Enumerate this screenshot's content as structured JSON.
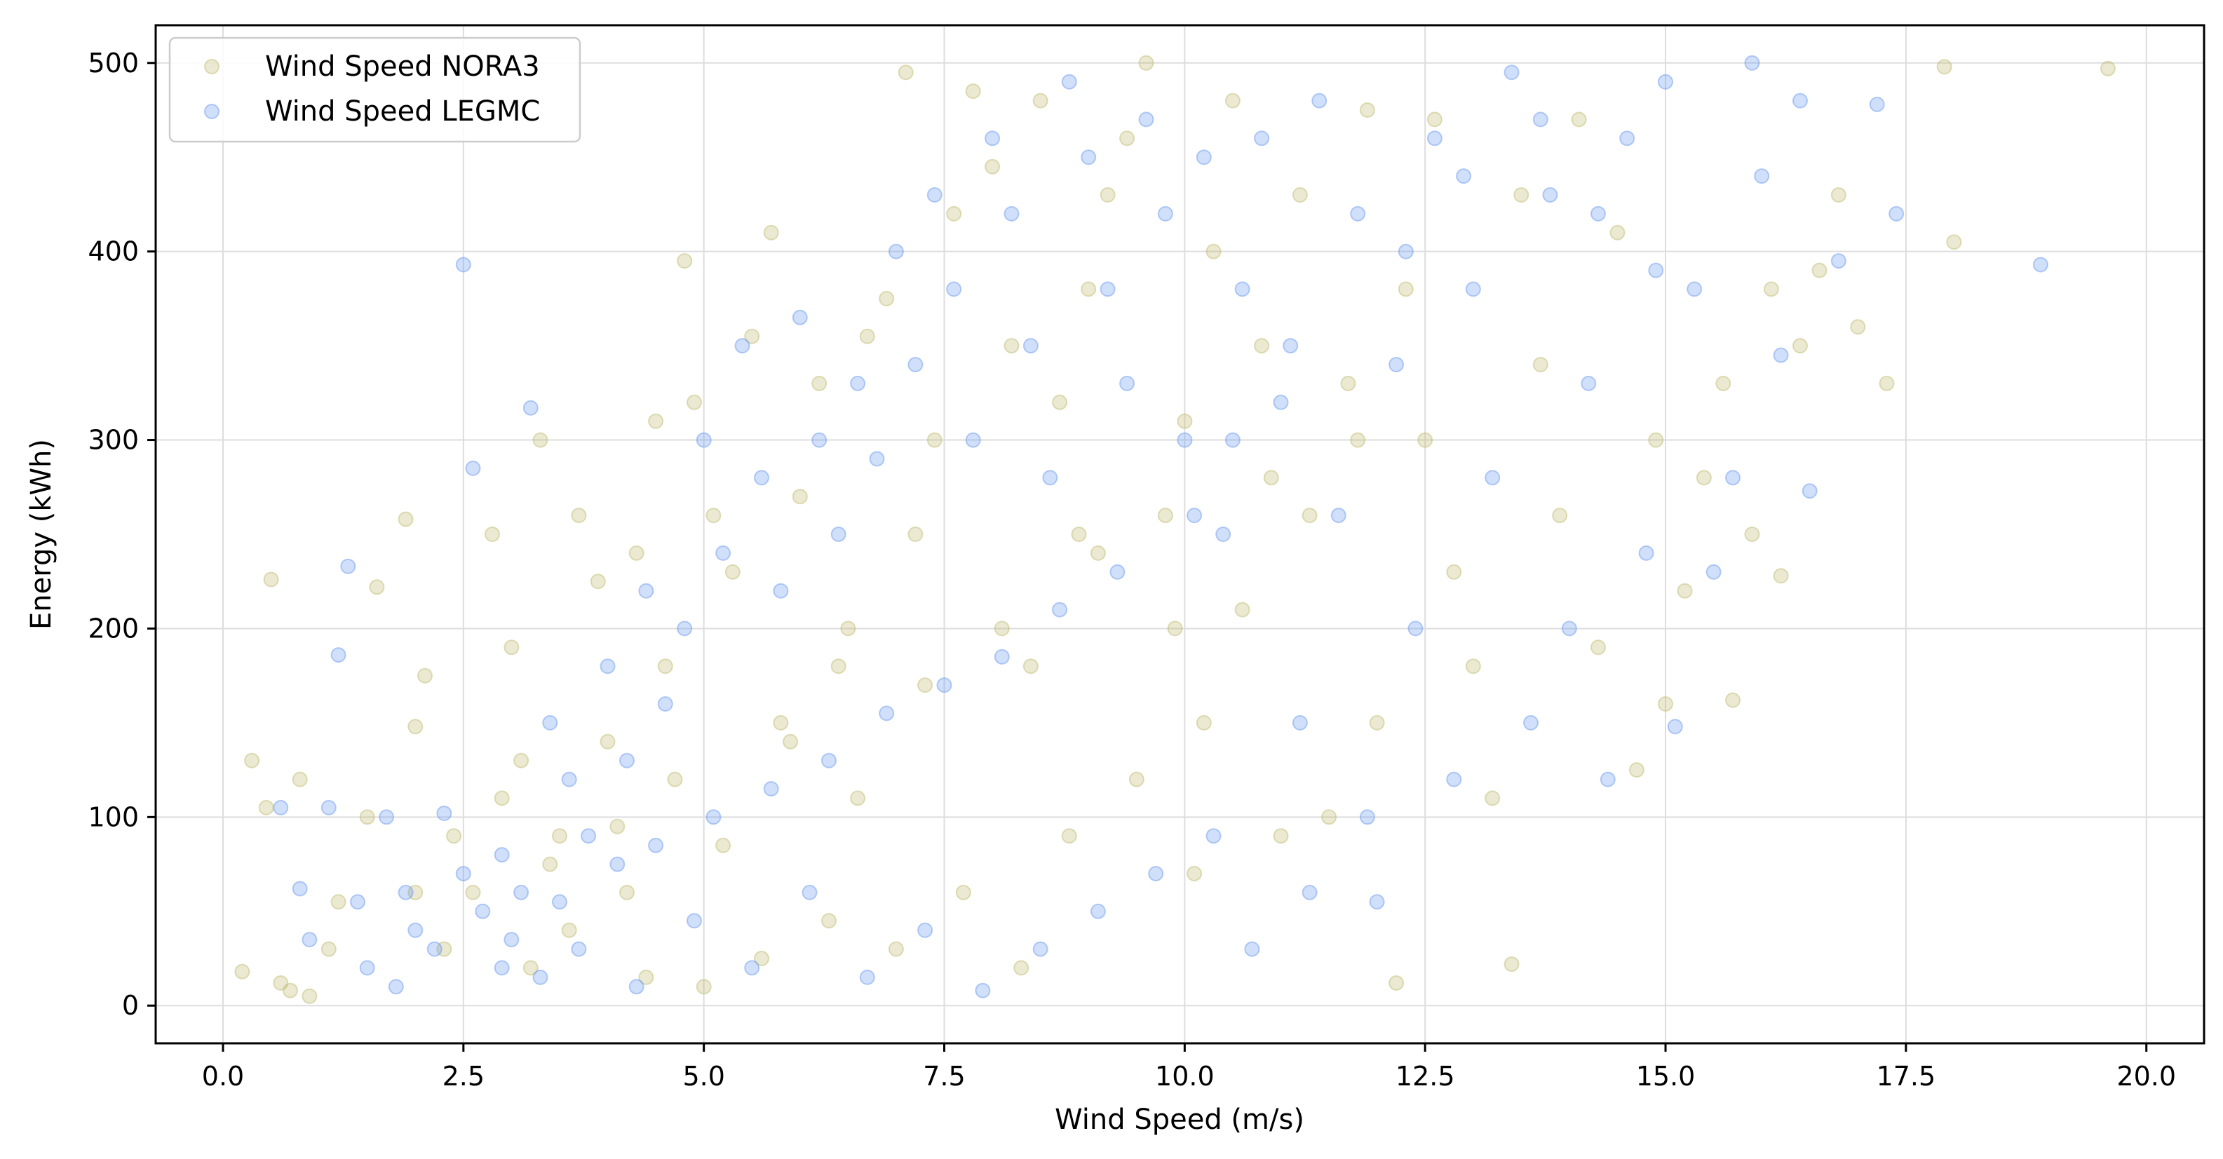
{
  "chart_data": {
    "type": "scatter",
    "title": "",
    "xlabel": "Wind Speed (m/s)",
    "ylabel": "Energy (kWh)",
    "xlim": [
      -0.7,
      20.6
    ],
    "ylim": [
      -20,
      520
    ],
    "x_ticks": [
      "0.0",
      "2.5",
      "5.0",
      "7.5",
      "10.0",
      "12.5",
      "15.0",
      "17.5",
      "20.0"
    ],
    "y_ticks": [
      "0",
      "100",
      "200",
      "300",
      "400",
      "500"
    ],
    "grid": true,
    "legend_position": "top-left",
    "series": [
      {
        "name": "Wind Speed NORA3",
        "color": "#BDB76B",
        "points": [
          [
            0.2,
            18
          ],
          [
            0.3,
            130
          ],
          [
            0.45,
            105
          ],
          [
            0.5,
            226
          ],
          [
            0.6,
            12
          ],
          [
            0.7,
            8
          ],
          [
            0.8,
            120
          ],
          [
            0.9,
            5
          ],
          [
            1.1,
            30
          ],
          [
            1.2,
            55
          ],
          [
            1.5,
            100
          ],
          [
            1.6,
            222
          ],
          [
            1.9,
            258
          ],
          [
            2.0,
            148
          ],
          [
            2.1,
            175
          ],
          [
            2.3,
            30
          ],
          [
            2.6,
            60
          ],
          [
            2.8,
            250
          ],
          [
            3.0,
            190
          ],
          [
            3.1,
            130
          ],
          [
            3.3,
            300
          ],
          [
            3.5,
            90
          ],
          [
            3.7,
            260
          ],
          [
            3.9,
            225
          ],
          [
            4.0,
            140
          ],
          [
            4.2,
            60
          ],
          [
            4.3,
            240
          ],
          [
            4.5,
            310
          ],
          [
            4.6,
            180
          ],
          [
            4.8,
            395
          ],
          [
            4.9,
            320
          ],
          [
            5.1,
            260
          ],
          [
            5.3,
            230
          ],
          [
            5.5,
            355
          ],
          [
            5.7,
            410
          ],
          [
            5.8,
            150
          ],
          [
            6.0,
            270
          ],
          [
            6.2,
            330
          ],
          [
            6.4,
            180
          ],
          [
            6.5,
            200
          ],
          [
            6.7,
            355
          ],
          [
            6.9,
            375
          ],
          [
            7.1,
            495
          ],
          [
            7.2,
            250
          ],
          [
            7.4,
            300
          ],
          [
            7.6,
            420
          ],
          [
            7.8,
            485
          ],
          [
            8.0,
            445
          ],
          [
            8.2,
            350
          ],
          [
            8.4,
            180
          ],
          [
            8.5,
            480
          ],
          [
            8.7,
            320
          ],
          [
            8.9,
            250
          ],
          [
            9.0,
            380
          ],
          [
            9.2,
            430
          ],
          [
            9.4,
            460
          ],
          [
            9.6,
            500
          ],
          [
            9.8,
            260
          ],
          [
            10.0,
            310
          ],
          [
            10.1,
            70
          ],
          [
            10.3,
            400
          ],
          [
            10.5,
            480
          ],
          [
            10.6,
            210
          ],
          [
            10.8,
            350
          ],
          [
            11.0,
            90
          ],
          [
            11.2,
            430
          ],
          [
            11.3,
            260
          ],
          [
            11.5,
            100
          ],
          [
            11.7,
            330
          ],
          [
            11.9,
            475
          ],
          [
            12.0,
            150
          ],
          [
            12.2,
            12
          ],
          [
            12.3,
            380
          ],
          [
            12.5,
            300
          ],
          [
            12.6,
            470
          ],
          [
            12.8,
            230
          ],
          [
            13.0,
            180
          ],
          [
            13.2,
            110
          ],
          [
            13.4,
            22
          ],
          [
            13.5,
            430
          ],
          [
            13.7,
            340
          ],
          [
            13.9,
            260
          ],
          [
            14.1,
            470
          ],
          [
            14.3,
            190
          ],
          [
            14.5,
            410
          ],
          [
            14.7,
            125
          ],
          [
            14.9,
            300
          ],
          [
            15.0,
            160
          ],
          [
            15.2,
            220
          ],
          [
            15.4,
            280
          ],
          [
            15.6,
            330
          ],
          [
            15.7,
            162
          ],
          [
            15.9,
            250
          ],
          [
            16.1,
            380
          ],
          [
            16.2,
            228
          ],
          [
            16.4,
            350
          ],
          [
            16.6,
            390
          ],
          [
            16.8,
            430
          ],
          [
            17.0,
            360
          ],
          [
            17.3,
            330
          ],
          [
            17.9,
            498
          ],
          [
            18.0,
            405
          ],
          [
            19.6,
            497
          ],
          [
            3.2,
            20
          ],
          [
            3.6,
            40
          ],
          [
            4.4,
            15
          ],
          [
            5.0,
            10
          ],
          [
            5.6,
            25
          ],
          [
            6.3,
            45
          ],
          [
            7.0,
            30
          ],
          [
            7.7,
            60
          ],
          [
            8.3,
            20
          ],
          [
            8.8,
            90
          ],
          [
            9.5,
            120
          ],
          [
            10.2,
            150
          ],
          [
            2.0,
            60
          ],
          [
            2.4,
            90
          ],
          [
            2.9,
            110
          ],
          [
            3.4,
            75
          ],
          [
            4.1,
            95
          ],
          [
            4.7,
            120
          ],
          [
            5.2,
            85
          ],
          [
            5.9,
            140
          ],
          [
            6.6,
            110
          ],
          [
            7.3,
            170
          ],
          [
            8.1,
            200
          ],
          [
            9.1,
            240
          ],
          [
            9.9,
            200
          ],
          [
            10.9,
            280
          ],
          [
            11.8,
            300
          ]
        ]
      },
      {
        "name": "Wind Speed LEGMC",
        "color": "#6495ED",
        "points": [
          [
            0.6,
            105
          ],
          [
            0.8,
            62
          ],
          [
            0.9,
            35
          ],
          [
            1.1,
            105
          ],
          [
            1.2,
            186
          ],
          [
            1.3,
            233
          ],
          [
            1.4,
            55
          ],
          [
            1.7,
            100
          ],
          [
            1.9,
            60
          ],
          [
            2.0,
            40
          ],
          [
            2.3,
            102
          ],
          [
            2.5,
            70
          ],
          [
            2.5,
            393
          ],
          [
            2.6,
            285
          ],
          [
            2.9,
            80
          ],
          [
            3.1,
            60
          ],
          [
            3.2,
            317
          ],
          [
            3.4,
            150
          ],
          [
            3.6,
            120
          ],
          [
            3.8,
            90
          ],
          [
            4.0,
            180
          ],
          [
            4.2,
            130
          ],
          [
            4.4,
            220
          ],
          [
            4.6,
            160
          ],
          [
            4.8,
            200
          ],
          [
            5.0,
            300
          ],
          [
            5.2,
            240
          ],
          [
            5.4,
            350
          ],
          [
            5.6,
            280
          ],
          [
            5.8,
            220
          ],
          [
            6.0,
            365
          ],
          [
            6.2,
            300
          ],
          [
            6.4,
            250
          ],
          [
            6.6,
            330
          ],
          [
            6.8,
            290
          ],
          [
            7.0,
            400
          ],
          [
            7.2,
            340
          ],
          [
            7.4,
            430
          ],
          [
            7.6,
            380
          ],
          [
            7.8,
            300
          ],
          [
            8.0,
            460
          ],
          [
            8.2,
            420
          ],
          [
            8.4,
            350
          ],
          [
            8.6,
            280
          ],
          [
            8.8,
            490
          ],
          [
            9.0,
            450
          ],
          [
            9.2,
            380
          ],
          [
            9.4,
            330
          ],
          [
            9.6,
            470
          ],
          [
            9.8,
            420
          ],
          [
            10.0,
            300
          ],
          [
            10.2,
            450
          ],
          [
            10.4,
            250
          ],
          [
            10.6,
            380
          ],
          [
            10.8,
            460
          ],
          [
            11.0,
            320
          ],
          [
            11.2,
            150
          ],
          [
            11.4,
            480
          ],
          [
            11.6,
            260
          ],
          [
            11.8,
            420
          ],
          [
            12.0,
            55
          ],
          [
            12.2,
            340
          ],
          [
            12.4,
            200
          ],
          [
            12.6,
            460
          ],
          [
            12.8,
            120
          ],
          [
            13.0,
            380
          ],
          [
            13.2,
            280
          ],
          [
            13.4,
            495
          ],
          [
            13.6,
            150
          ],
          [
            13.8,
            430
          ],
          [
            14.0,
            200
          ],
          [
            14.2,
            330
          ],
          [
            14.4,
            120
          ],
          [
            14.6,
            460
          ],
          [
            14.8,
            240
          ],
          [
            15.0,
            490
          ],
          [
            15.1,
            148
          ],
          [
            15.3,
            380
          ],
          [
            15.5,
            230
          ],
          [
            15.7,
            280
          ],
          [
            15.9,
            500
          ],
          [
            16.2,
            345
          ],
          [
            16.4,
            480
          ],
          [
            16.5,
            273
          ],
          [
            16.8,
            395
          ],
          [
            17.2,
            478
          ],
          [
            17.4,
            420
          ],
          [
            18.9,
            393
          ],
          [
            2.9,
            20
          ],
          [
            3.3,
            15
          ],
          [
            3.7,
            30
          ],
          [
            4.3,
            10
          ],
          [
            4.9,
            45
          ],
          [
            5.5,
            20
          ],
          [
            6.1,
            60
          ],
          [
            6.7,
            15
          ],
          [
            7.3,
            40
          ],
          [
            7.9,
            8
          ],
          [
            8.5,
            30
          ],
          [
            9.1,
            50
          ],
          [
            9.7,
            70
          ],
          [
            10.3,
            90
          ],
          [
            10.7,
            30
          ],
          [
            11.3,
            60
          ],
          [
            11.9,
            100
          ],
          [
            1.5,
            20
          ],
          [
            1.8,
            10
          ],
          [
            2.2,
            30
          ],
          [
            2.7,
            50
          ],
          [
            3.0,
            35
          ],
          [
            3.5,
            55
          ],
          [
            4.1,
            75
          ],
          [
            4.5,
            85
          ],
          [
            5.1,
            100
          ],
          [
            5.7,
            115
          ],
          [
            6.3,
            130
          ],
          [
            6.9,
            155
          ],
          [
            7.5,
            170
          ],
          [
            8.1,
            185
          ],
          [
            8.7,
            210
          ],
          [
            9.3,
            230
          ],
          [
            10.1,
            260
          ],
          [
            10.5,
            300
          ],
          [
            11.1,
            350
          ],
          [
            12.3,
            400
          ],
          [
            12.9,
            440
          ],
          [
            13.7,
            470
          ],
          [
            14.3,
            420
          ],
          [
            14.9,
            390
          ],
          [
            16.0,
            440
          ]
        ]
      }
    ]
  }
}
